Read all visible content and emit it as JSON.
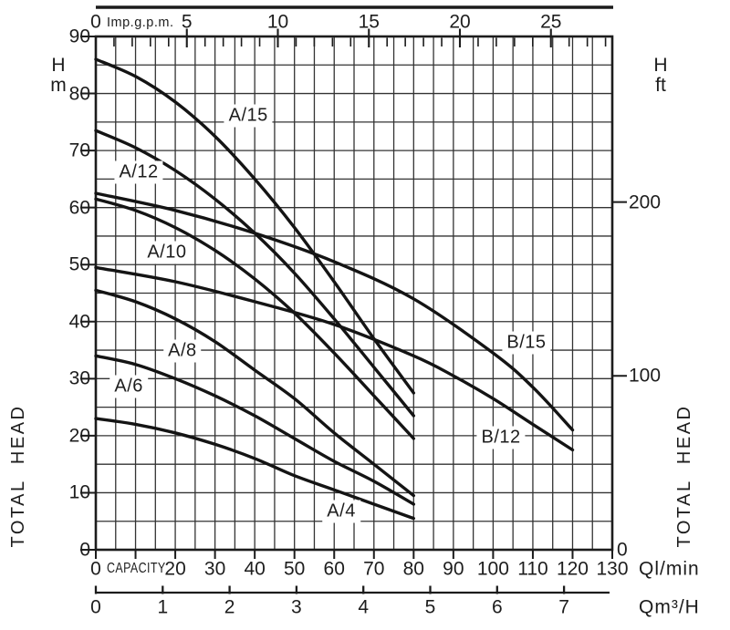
{
  "chart_data": {
    "type": "line",
    "title": "Pump performance curves: total head vs capacity",
    "x_range_lmin": [
      0,
      130
    ],
    "y_range_m": [
      0,
      90
    ],
    "grid": {
      "x_minor_step_lmin": 5,
      "y_minor_step_m": 5,
      "grid_on": true
    },
    "top_axis": {
      "zero_label": "0",
      "unit": "Imp.g.p.m.",
      "ticks": [
        5,
        10,
        15,
        20,
        25
      ],
      "minor_tick_step_gpm": 1
    },
    "left_axis": {
      "unit_lines": [
        "H",
        "m"
      ],
      "rotated_title": "TOTAL HEAD",
      "ticks": [
        90,
        80,
        70,
        60,
        50,
        40,
        30,
        20,
        10,
        0
      ]
    },
    "right_axis": {
      "unit_lines": [
        "H",
        "ft"
      ],
      "rotated_title": "TOTAL HEAD",
      "ticks": [
        200,
        100,
        0
      ]
    },
    "bottom_axis": {
      "zero_label": "0",
      "capacity_label": "CAPACITY",
      "ticks": [
        20,
        30,
        40,
        50,
        60,
        70,
        80,
        90,
        100,
        110,
        120,
        130
      ],
      "unit": "Ql/min"
    },
    "m3h_axis": {
      "ticks": [
        0,
        1,
        2,
        3,
        4,
        5,
        6,
        7
      ],
      "unit": "Qm³/H"
    },
    "series": [
      {
        "name": "A/15",
        "label_q": 38.4,
        "label_h": 76.1,
        "points": [
          [
            0,
            86
          ],
          [
            10,
            83
          ],
          [
            20,
            78.5
          ],
          [
            30,
            72.5
          ],
          [
            40,
            65
          ],
          [
            50,
            56.5
          ],
          [
            60,
            47
          ],
          [
            70,
            37
          ],
          [
            80,
            27.5
          ]
        ]
      },
      {
        "name": "A/12",
        "label_q": 10.8,
        "label_h": 66.2,
        "points": [
          [
            0,
            73.5
          ],
          [
            10,
            70.5
          ],
          [
            20,
            66.5
          ],
          [
            30,
            61.5
          ],
          [
            40,
            55.5
          ],
          [
            50,
            48.5
          ],
          [
            60,
            40.5
          ],
          [
            70,
            32
          ],
          [
            80,
            23.5
          ]
        ]
      },
      {
        "name": "A/10",
        "label_q": 17.9,
        "label_h": 52.1,
        "points": [
          [
            0,
            61.5
          ],
          [
            10,
            59.5
          ],
          [
            20,
            56.5
          ],
          [
            30,
            52.5
          ],
          [
            40,
            47.5
          ],
          [
            50,
            41.5
          ],
          [
            60,
            34.5
          ],
          [
            70,
            27
          ],
          [
            80,
            19.5
          ]
        ]
      },
      {
        "name": "B/15",
        "label_q": 108.4,
        "label_h": 36.3,
        "points": [
          [
            0,
            62.5
          ],
          [
            20,
            59.5
          ],
          [
            40,
            55.5
          ],
          [
            60,
            50.5
          ],
          [
            80,
            44
          ],
          [
            100,
            34.5
          ],
          [
            110,
            28.5
          ],
          [
            120,
            21
          ]
        ]
      },
      {
        "name": "B/12",
        "label_q": 102.0,
        "label_h": 19.7,
        "points": [
          [
            0,
            49.5
          ],
          [
            20,
            47
          ],
          [
            40,
            43.5
          ],
          [
            60,
            39.5
          ],
          [
            80,
            34
          ],
          [
            90,
            30.5
          ],
          [
            100,
            26.5
          ],
          [
            110,
            22
          ],
          [
            120,
            17.5
          ]
        ]
      },
      {
        "name": "A/8",
        "label_q": 21.8,
        "label_h": 34.8,
        "points": [
          [
            0,
            45.5
          ],
          [
            10,
            43.5
          ],
          [
            20,
            40.5
          ],
          [
            30,
            36.5
          ],
          [
            40,
            31.5
          ],
          [
            50,
            26.5
          ],
          [
            60,
            20.5
          ],
          [
            70,
            15
          ],
          [
            80,
            9.5
          ]
        ]
      },
      {
        "name": "A/6",
        "label_q": 8.3,
        "label_h": 28.6,
        "points": [
          [
            0,
            34
          ],
          [
            10,
            32.5
          ],
          [
            20,
            30
          ],
          [
            30,
            27
          ],
          [
            40,
            23.5
          ],
          [
            50,
            19.5
          ],
          [
            60,
            15.5
          ],
          [
            70,
            12
          ],
          [
            80,
            8
          ]
        ]
      },
      {
        "name": "A/4",
        "label_q": 61.8,
        "label_h": 6.7,
        "points": [
          [
            0,
            23
          ],
          [
            10,
            22
          ],
          [
            20,
            20.5
          ],
          [
            30,
            18.5
          ],
          [
            40,
            16
          ],
          [
            50,
            13
          ],
          [
            60,
            10.5
          ],
          [
            70,
            8
          ],
          [
            80,
            5.5
          ]
        ]
      }
    ]
  }
}
